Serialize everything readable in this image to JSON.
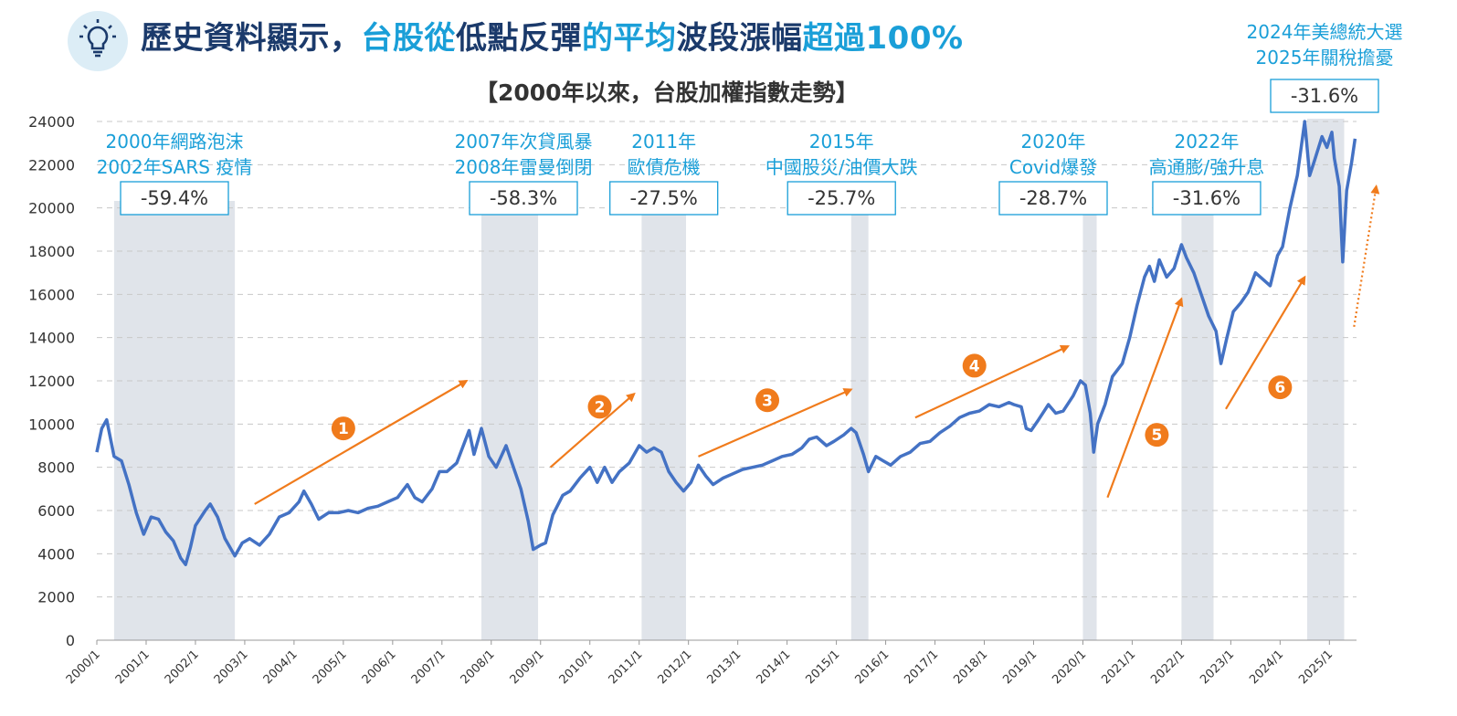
{
  "header": {
    "title_parts": [
      {
        "text": "歷史資料顯示，",
        "hl": false
      },
      {
        "text": "台股從",
        "hl": true
      },
      {
        "text": "低點反彈",
        "hl": false
      },
      {
        "text": "的平均",
        "hl": true
      },
      {
        "text": "波段漲幅",
        "hl": false
      },
      {
        "text": "超過100%",
        "hl": true
      }
    ],
    "subtitle": "【2000年以來，台股加權指數走勢】",
    "icon": "lightbulb-icon"
  },
  "colors": {
    "line": "#4472c4",
    "shade": "#e0e4ea",
    "accent": "#1a9fd8",
    "arrow": "#f07b1c",
    "title": "#1b3a6b"
  },
  "chart_data": {
    "type": "line",
    "ylim": [
      0,
      24000
    ],
    "yticks": [
      0,
      2000,
      4000,
      6000,
      8000,
      10000,
      12000,
      14000,
      16000,
      18000,
      20000,
      22000,
      24000
    ],
    "xlim": [
      2000,
      2025.55
    ],
    "xticks": [
      "2000/1",
      "2001/1",
      "2002/1",
      "2003/1",
      "2004/1",
      "2005/1",
      "2006/1",
      "2007/1",
      "2008/1",
      "2009/1",
      "2010/1",
      "2011/1",
      "2012/1",
      "2013/1",
      "2014/1",
      "2015/1",
      "2016/1",
      "2017/1",
      "2018/1",
      "2019/1",
      "2020/1",
      "2021/1",
      "2022/1",
      "2023/1",
      "2024/1",
      "2025/1"
    ],
    "grid": "horizontal-dashed",
    "series": [
      {
        "points": [
          [
            2000.0,
            8700
          ],
          [
            2000.1,
            9800
          ],
          [
            2000.2,
            10200
          ],
          [
            2000.35,
            8500
          ],
          [
            2000.5,
            8300
          ],
          [
            2000.65,
            7200
          ],
          [
            2000.8,
            5900
          ],
          [
            2000.95,
            4900
          ],
          [
            2001.1,
            5700
          ],
          [
            2001.25,
            5600
          ],
          [
            2001.4,
            5000
          ],
          [
            2001.55,
            4600
          ],
          [
            2001.7,
            3800
          ],
          [
            2001.8,
            3500
          ],
          [
            2001.9,
            4300
          ],
          [
            2002.0,
            5300
          ],
          [
            2002.2,
            6000
          ],
          [
            2002.3,
            6300
          ],
          [
            2002.45,
            5700
          ],
          [
            2002.6,
            4700
          ],
          [
            2002.8,
            3900
          ],
          [
            2002.95,
            4500
          ],
          [
            2003.1,
            4700
          ],
          [
            2003.3,
            4400
          ],
          [
            2003.5,
            4900
          ],
          [
            2003.7,
            5700
          ],
          [
            2003.9,
            5900
          ],
          [
            2004.1,
            6400
          ],
          [
            2004.2,
            6900
          ],
          [
            2004.35,
            6300
          ],
          [
            2004.5,
            5600
          ],
          [
            2004.7,
            5900
          ],
          [
            2004.9,
            5900
          ],
          [
            2005.1,
            6000
          ],
          [
            2005.3,
            5900
          ],
          [
            2005.5,
            6100
          ],
          [
            2005.7,
            6200
          ],
          [
            2005.9,
            6400
          ],
          [
            2006.1,
            6600
          ],
          [
            2006.3,
            7200
          ],
          [
            2006.45,
            6600
          ],
          [
            2006.6,
            6400
          ],
          [
            2006.8,
            7000
          ],
          [
            2006.95,
            7800
          ],
          [
            2007.1,
            7800
          ],
          [
            2007.3,
            8200
          ],
          [
            2007.45,
            9100
          ],
          [
            2007.55,
            9700
          ],
          [
            2007.65,
            8600
          ],
          [
            2007.8,
            9800
          ],
          [
            2007.95,
            8500
          ],
          [
            2008.1,
            8000
          ],
          [
            2008.3,
            9000
          ],
          [
            2008.45,
            8000
          ],
          [
            2008.6,
            7000
          ],
          [
            2008.75,
            5500
          ],
          [
            2008.85,
            4200
          ],
          [
            2009.0,
            4400
          ],
          [
            2009.1,
            4500
          ],
          [
            2009.25,
            5800
          ],
          [
            2009.45,
            6700
          ],
          [
            2009.6,
            6900
          ],
          [
            2009.8,
            7500
          ],
          [
            2010.0,
            8000
          ],
          [
            2010.15,
            7300
          ],
          [
            2010.3,
            8000
          ],
          [
            2010.45,
            7300
          ],
          [
            2010.6,
            7800
          ],
          [
            2010.8,
            8200
          ],
          [
            2011.0,
            9000
          ],
          [
            2011.15,
            8700
          ],
          [
            2011.3,
            8900
          ],
          [
            2011.45,
            8700
          ],
          [
            2011.6,
            7800
          ],
          [
            2011.75,
            7300
          ],
          [
            2011.9,
            6900
          ],
          [
            2012.05,
            7300
          ],
          [
            2012.2,
            8100
          ],
          [
            2012.35,
            7600
          ],
          [
            2012.5,
            7200
          ],
          [
            2012.7,
            7500
          ],
          [
            2012.9,
            7700
          ],
          [
            2013.1,
            7900
          ],
          [
            2013.3,
            8000
          ],
          [
            2013.5,
            8100
          ],
          [
            2013.7,
            8300
          ],
          [
            2013.9,
            8500
          ],
          [
            2014.1,
            8600
          ],
          [
            2014.3,
            8900
          ],
          [
            2014.45,
            9300
          ],
          [
            2014.6,
            9400
          ],
          [
            2014.8,
            9000
          ],
          [
            2014.95,
            9200
          ],
          [
            2015.15,
            9500
          ],
          [
            2015.3,
            9800
          ],
          [
            2015.4,
            9600
          ],
          [
            2015.55,
            8600
          ],
          [
            2015.65,
            7800
          ],
          [
            2015.8,
            8500
          ],
          [
            2015.95,
            8300
          ],
          [
            2016.1,
            8100
          ],
          [
            2016.3,
            8500
          ],
          [
            2016.5,
            8700
          ],
          [
            2016.7,
            9100
          ],
          [
            2016.9,
            9200
          ],
          [
            2017.1,
            9600
          ],
          [
            2017.3,
            9900
          ],
          [
            2017.5,
            10300
          ],
          [
            2017.7,
            10500
          ],
          [
            2017.9,
            10600
          ],
          [
            2018.1,
            10900
          ],
          [
            2018.3,
            10800
          ],
          [
            2018.5,
            11000
          ],
          [
            2018.6,
            10900
          ],
          [
            2018.75,
            10800
          ],
          [
            2018.85,
            9800
          ],
          [
            2018.95,
            9700
          ],
          [
            2019.1,
            10200
          ],
          [
            2019.3,
            10900
          ],
          [
            2019.45,
            10500
          ],
          [
            2019.6,
            10600
          ],
          [
            2019.8,
            11300
          ],
          [
            2019.95,
            12000
          ],
          [
            2020.05,
            11800
          ],
          [
            2020.15,
            10500
          ],
          [
            2020.22,
            8700
          ],
          [
            2020.3,
            10000
          ],
          [
            2020.45,
            10900
          ],
          [
            2020.6,
            12200
          ],
          [
            2020.8,
            12800
          ],
          [
            2020.95,
            14000
          ],
          [
            2021.1,
            15500
          ],
          [
            2021.25,
            16800
          ],
          [
            2021.35,
            17300
          ],
          [
            2021.45,
            16600
          ],
          [
            2021.55,
            17600
          ],
          [
            2021.7,
            16800
          ],
          [
            2021.85,
            17200
          ],
          [
            2022.0,
            18300
          ],
          [
            2022.1,
            17700
          ],
          [
            2022.25,
            17000
          ],
          [
            2022.4,
            16000
          ],
          [
            2022.55,
            15000
          ],
          [
            2022.7,
            14300
          ],
          [
            2022.8,
            12800
          ],
          [
            2022.92,
            14000
          ],
          [
            2023.05,
            15200
          ],
          [
            2023.2,
            15600
          ],
          [
            2023.35,
            16100
          ],
          [
            2023.5,
            17000
          ],
          [
            2023.65,
            16700
          ],
          [
            2023.8,
            16400
          ],
          [
            2023.95,
            17800
          ],
          [
            2024.05,
            18200
          ],
          [
            2024.2,
            20000
          ],
          [
            2024.35,
            21500
          ],
          [
            2024.5,
            24000
          ],
          [
            2024.6,
            21500
          ],
          [
            2024.7,
            22200
          ],
          [
            2024.85,
            23300
          ],
          [
            2024.95,
            22800
          ],
          [
            2025.05,
            23500
          ],
          [
            2025.1,
            22300
          ],
          [
            2025.2,
            21000
          ],
          [
            2025.27,
            17500
          ],
          [
            2025.35,
            20800
          ],
          [
            2025.45,
            22100
          ],
          [
            2025.52,
            23200
          ]
        ]
      }
    ],
    "shaded_periods": [
      {
        "x0": 2000.35,
        "x1": 2002.8,
        "label_lines": [
          "2000年網路泡沫",
          "2002年SARS 疫情"
        ],
        "pct": "-59.4%"
      },
      {
        "x0": 2007.8,
        "x1": 2008.95,
        "label_lines": [
          "2007年次貸風暴",
          "2008年雷曼倒閉"
        ],
        "pct": "-58.3%"
      },
      {
        "x0": 2011.05,
        "x1": 2011.95,
        "label_lines": [
          "2011年",
          "歐債危機"
        ],
        "pct": "-27.5%"
      },
      {
        "x0": 2015.3,
        "x1": 2015.65,
        "label_lines": [
          "2015年",
          "中國股災/油價大跌"
        ],
        "pct": "-25.7%"
      },
      {
        "x0": 2020.0,
        "x1": 2020.28,
        "label_lines": [
          "2020年",
          "Covid爆發"
        ],
        "pct": "-28.7%"
      },
      {
        "x0": 2022.0,
        "x1": 2022.65,
        "label_lines": [
          "2022年",
          "高通膨/強升息"
        ],
        "pct": "-31.6%"
      },
      {
        "x0": 2024.55,
        "x1": 2025.3,
        "label_lines": [
          "2024年美總統大選",
          "2025年關稅擔憂"
        ],
        "pct": "-31.6%"
      }
    ],
    "rebound_arrows": [
      {
        "num": "1",
        "from": [
          2003.2,
          6300
        ],
        "to": [
          2007.5,
          12000
        ],
        "dotted": false
      },
      {
        "num": "2",
        "from": [
          2009.2,
          8000
        ],
        "to": [
          2010.9,
          11400
        ],
        "dotted": false
      },
      {
        "num": "3",
        "from": [
          2012.2,
          8500
        ],
        "to": [
          2015.3,
          11600
        ],
        "dotted": false
      },
      {
        "num": "4",
        "from": [
          2016.6,
          10300
        ],
        "to": [
          2019.7,
          13600
        ],
        "dotted": false
      },
      {
        "num": "5",
        "from": [
          2020.5,
          6600
        ],
        "to": [
          2022.0,
          15800
        ],
        "dotted": false
      },
      {
        "num": "6",
        "from": [
          2022.9,
          10700
        ],
        "to": [
          2024.5,
          16800
        ],
        "dotted": false
      },
      {
        "num": "",
        "from": [
          2025.5,
          14500
        ],
        "to": [
          2025.95,
          21000
        ],
        "dotted": true
      }
    ],
    "rebound_numbers": [
      {
        "num": "1",
        "x": 2005.0,
        "y": 9800
      },
      {
        "num": "2",
        "x": 2010.2,
        "y": 10800
      },
      {
        "num": "3",
        "x": 2013.6,
        "y": 11100
      },
      {
        "num": "4",
        "x": 2017.8,
        "y": 12700
      },
      {
        "num": "5",
        "x": 2021.5,
        "y": 9500
      },
      {
        "num": "6",
        "x": 2024.0,
        "y": 11700
      }
    ]
  }
}
